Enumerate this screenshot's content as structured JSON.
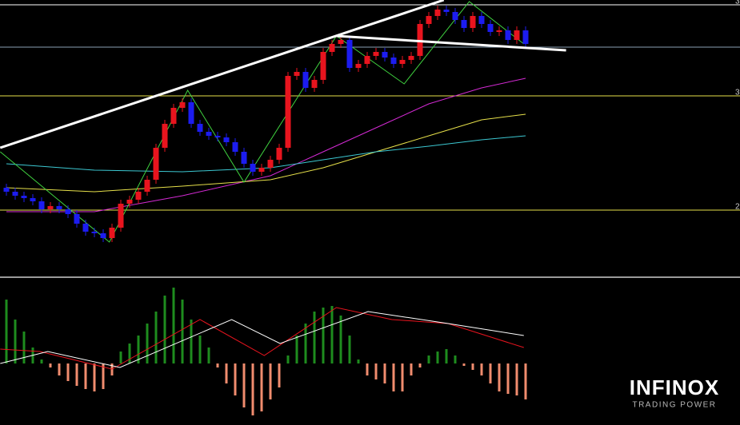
{
  "chart_data": [
    {
      "type": "candlestick",
      "xlim": [
        -0.727,
        83.364
      ],
      "ylim": [
        0,
        345
      ],
      "up_color": "#e8141e",
      "down_color": "#1c1cf0",
      "open": [
        110,
        105,
        100,
        97,
        93,
        83,
        87,
        83,
        77,
        65,
        55,
        53,
        47,
        60,
        90,
        95,
        105,
        120,
        160,
        190,
        210,
        217,
        190,
        180,
        175,
        173,
        167,
        155,
        140,
        130,
        135,
        145,
        160,
        250,
        255,
        235,
        245,
        280,
        290,
        295,
        260,
        265,
        275,
        280,
        273,
        265,
        270,
        275,
        315,
        325,
        333,
        330,
        320,
        310,
        325,
        315,
        305,
        307,
        295,
        307
      ],
      "high": [
        115,
        110,
        105,
        102,
        98,
        92,
        92,
        88,
        82,
        70,
        60,
        58,
        65,
        95,
        100,
        110,
        125,
        165,
        195,
        215,
        222,
        222,
        195,
        185,
        180,
        178,
        172,
        160,
        145,
        140,
        150,
        165,
        255,
        260,
        260,
        250,
        285,
        295,
        300,
        300,
        270,
        280,
        285,
        285,
        278,
        275,
        280,
        320,
        330,
        338,
        338,
        335,
        325,
        330,
        330,
        320,
        312,
        312,
        312,
        312
      ],
      "low": [
        100,
        95,
        92,
        88,
        78,
        78,
        78,
        72,
        60,
        50,
        48,
        42,
        42,
        55,
        85,
        90,
        100,
        115,
        155,
        185,
        205,
        185,
        175,
        170,
        168,
        162,
        150,
        135,
        125,
        125,
        130,
        140,
        155,
        245,
        230,
        230,
        240,
        275,
        285,
        255,
        255,
        260,
        270,
        268,
        260,
        260,
        265,
        270,
        310,
        320,
        325,
        315,
        305,
        305,
        310,
        300,
        300,
        290,
        290,
        285
      ],
      "close": [
        105,
        100,
        97,
        93,
        83,
        87,
        83,
        77,
        65,
        55,
        53,
        47,
        60,
        90,
        95,
        105,
        120,
        160,
        190,
        210,
        217,
        190,
        180,
        175,
        173,
        167,
        155,
        140,
        130,
        135,
        145,
        160,
        250,
        255,
        235,
        245,
        280,
        290,
        295,
        260,
        265,
        275,
        280,
        273,
        265,
        270,
        275,
        315,
        325,
        333,
        330,
        320,
        310,
        325,
        315,
        305,
        307,
        295,
        307,
        290
      ],
      "lines": [
        {
          "color": "#d42ad4",
          "x": [
            0,
            10,
            20,
            30,
            36,
            42,
            48,
            54,
            59
          ],
          "values": [
            80,
            80,
            100,
            125,
            155,
            185,
            215,
            235,
            247
          ]
        },
        {
          "color": "#e6e04a",
          "x": [
            0,
            10,
            20,
            30,
            36,
            42,
            48,
            54,
            59
          ],
          "values": [
            110,
            105,
            112,
            120,
            135,
            155,
            175,
            195,
            202
          ]
        },
        {
          "color": "#3cc8d2",
          "x": [
            0,
            10,
            20,
            30,
            36,
            42,
            48,
            54,
            59
          ],
          "values": [
            140,
            132,
            130,
            135,
            145,
            155,
            162,
            170,
            175
          ]
        }
      ],
      "zigzag": {
        "color": "#3fd23f",
        "x": [
          -0.7,
          11.7,
          20.6,
          27,
          37.5,
          45.2,
          52.6,
          58.8
        ],
        "values": [
          155,
          42,
          232,
          117,
          300,
          240,
          343,
          290
        ]
      },
      "trendlines": [
        {
          "color": "#ffffff",
          "x": [
            -0.7,
            49.7
          ],
          "values": [
            160,
            345
          ]
        },
        {
          "color": "#ffffff",
          "x": [
            37.5,
            63.6
          ],
          "values": [
            300,
            282
          ]
        }
      ],
      "hlines": [
        {
          "value": 339,
          "color": "#ffffff",
          "label": "3"
        },
        {
          "value": 286,
          "color": "#8aa0b4"
        },
        {
          "value": 225,
          "color": "#e6e04a",
          "label": "3"
        },
        {
          "value": 82,
          "color": "#e6e04a",
          "label": "2"
        }
      ]
    },
    {
      "type": "macd",
      "xlim": [
        -0.727,
        83.364
      ],
      "ylim": [
        -75,
        100
      ],
      "pos_color": "#1e8c1e",
      "neg_color": "#f08c6e",
      "histogram": [
        80,
        55,
        40,
        20,
        5,
        -5,
        -15,
        -22,
        -28,
        -32,
        -35,
        -32,
        -15,
        15,
        25,
        35,
        50,
        65,
        85,
        95,
        80,
        55,
        35,
        20,
        -5,
        -25,
        -40,
        -55,
        -65,
        -60,
        -45,
        -30,
        10,
        35,
        50,
        65,
        70,
        72,
        60,
        35,
        5,
        -15,
        -20,
        -25,
        -35,
        -35,
        -15,
        -5,
        10,
        15,
        18,
        10,
        -3,
        -8,
        -15,
        -25,
        -35,
        -38,
        -40,
        -45
      ],
      "lines": [
        {
          "color": "#e8141e",
          "x": [
            -0.7,
            3.8,
            12,
            22,
            29.3,
            37.5,
            43.8,
            50.2,
            58.8
          ],
          "values": [
            18,
            15,
            -7,
            55,
            10,
            70,
            55,
            50,
            20
          ]
        },
        {
          "color": "#ffffff",
          "x": [
            -0.7,
            4.7,
            12.9,
            25.6,
            31.1,
            41.1,
            50.2,
            58.8
          ],
          "values": [
            0,
            15,
            -5,
            55,
            25,
            65,
            50,
            35
          ]
        }
      ]
    }
  ],
  "logo": {
    "name": "INFINOX",
    "tagline": "TRADING POWER"
  }
}
